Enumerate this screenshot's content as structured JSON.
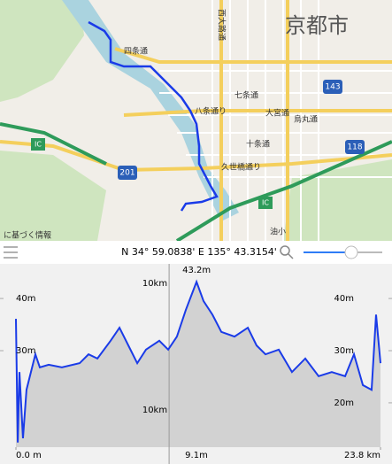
{
  "map": {
    "labels": [
      "京都市",
      "四条通",
      "西大路通",
      "七条通",
      "八条通り",
      "十条通",
      "久世橋通り",
      "大宮通",
      "烏丸通",
      "油小",
      "143",
      "118",
      "201",
      "IC",
      "IC",
      "に基づく情報"
    ]
  },
  "toolbar": {
    "coordinates": "N 34° 59.0838' E 135° 43.3154'"
  },
  "chart_data": {
    "type": "area",
    "color": "#1a3be8",
    "fill": "#d2d2d2",
    "x": [
      0,
      0.12,
      0.23,
      0.46,
      0.69,
      0.98,
      1.27,
      1.56,
      2.14,
      3.0,
      4.16,
      4.74,
      5.32,
      6.18,
      6.76,
      7.34,
      7.92,
      8.49,
      9.36,
      9.94,
      10.51,
      11.09,
      11.79,
      12.25,
      12.83,
      13.41,
      14.27,
      15.14,
      15.71,
      16.29,
      17.16,
      18.02,
      18.89,
      19.76,
      20.62,
      21.49,
      22.07,
      22.65,
      23.22,
      23.51,
      23.8
    ],
    "values": [
      36.1,
      12.4,
      25.9,
      13.2,
      22.5,
      25.9,
      29.3,
      26.8,
      27.3,
      26.8,
      27.6,
      29.3,
      28.5,
      31.9,
      34.4,
      31.0,
      27.6,
      30.2,
      31.9,
      30.2,
      32.7,
      37.8,
      43.2,
      39.5,
      36.9,
      33.6,
      32.7,
      34.4,
      31.0,
      29.3,
      30.2,
      25.9,
      28.5,
      25.1,
      25.9,
      25.1,
      29.3,
      23.4,
      22.5,
      36.9,
      27.6
    ],
    "xlim": [
      0,
      23.8
    ],
    "ylim": [
      11.5,
      44.6
    ],
    "xticks": [
      {
        "value": 0,
        "label": "0.0 m"
      },
      {
        "value": 23.8,
        "label": "23.8 km"
      }
    ],
    "yticks_left": [
      {
        "value": 40,
        "label": "40m"
      },
      {
        "value": 30,
        "label": "30m"
      }
    ],
    "yticks_right": [
      {
        "value": 40,
        "label": "40m"
      },
      {
        "value": 30,
        "label": "30m"
      },
      {
        "value": 20,
        "label": "20m"
      }
    ],
    "x_marker": {
      "value": 10,
      "label": "10km"
    },
    "max_label": {
      "value": 43.2,
      "label": "43.2m"
    },
    "cursor_label": "9.1m"
  }
}
